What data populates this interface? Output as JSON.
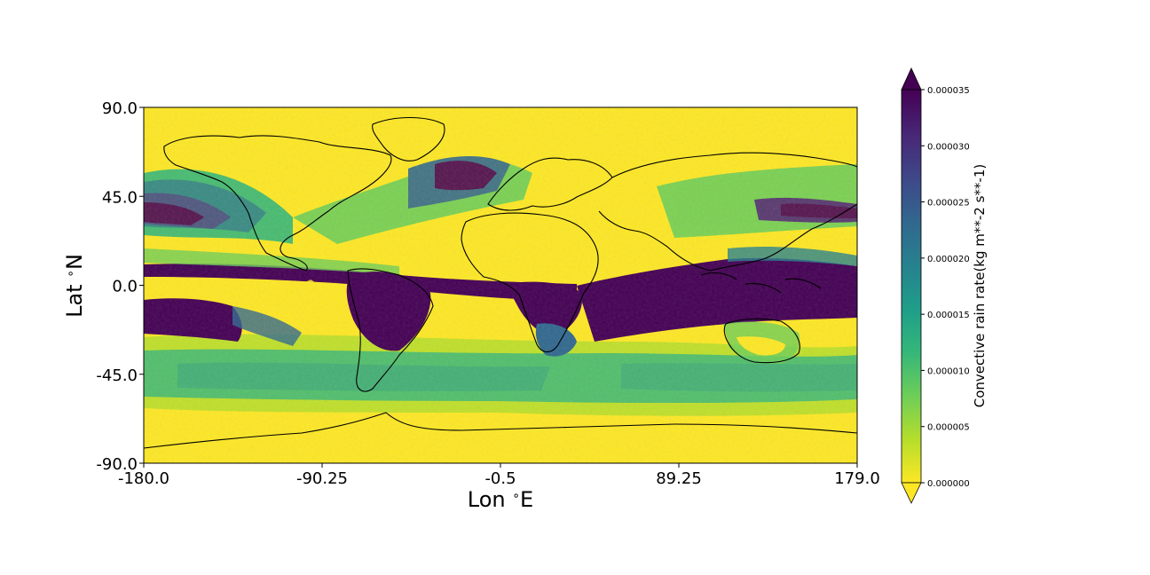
{
  "chart_data": {
    "type": "heatmap",
    "title": "",
    "xlabel": "Lon $^\\circ$E",
    "ylabel": "Lat $^\\circ$N",
    "x_axis": {
      "range": [
        -180.0,
        179.0
      ],
      "ticks": [
        -180.0,
        -90.25,
        -0.5,
        89.25,
        179.0
      ],
      "tick_labels": [
        "-180.0",
        "-90.25",
        "-0.5",
        "89.25",
        "179.0"
      ]
    },
    "y_axis": {
      "range": [
        -90.0,
        90.0
      ],
      "ticks": [
        90.0,
        45.0,
        0.0,
        -45.0,
        -90.0
      ],
      "tick_labels": [
        "90.0",
        "45.0",
        "0.0",
        "-45.0",
        "-90.0"
      ]
    },
    "colorbar": {
      "label": "Convective rain rate(kg m**-2 s**-1)",
      "colormap": "viridis",
      "range": [
        0.0,
        3.5e-05
      ],
      "extend": "both",
      "ticks": [
        0.0,
        5e-06,
        1e-05,
        1.5e-05,
        2e-05,
        2.5e-05,
        3e-05,
        3.5e-05
      ],
      "tick_labels": [
        "0.000000",
        "0.000005",
        "0.000010",
        "0.000015",
        "0.000020",
        "0.000025",
        "0.000030",
        "0.000035"
      ]
    },
    "colors": [
      "#fde725",
      "#b5de2b",
      "#6ece58",
      "#35b779",
      "#1f9e89",
      "#26828e",
      "#31688e",
      "#3e4989",
      "#482878",
      "#440154"
    ],
    "overlay": "coastlines"
  }
}
